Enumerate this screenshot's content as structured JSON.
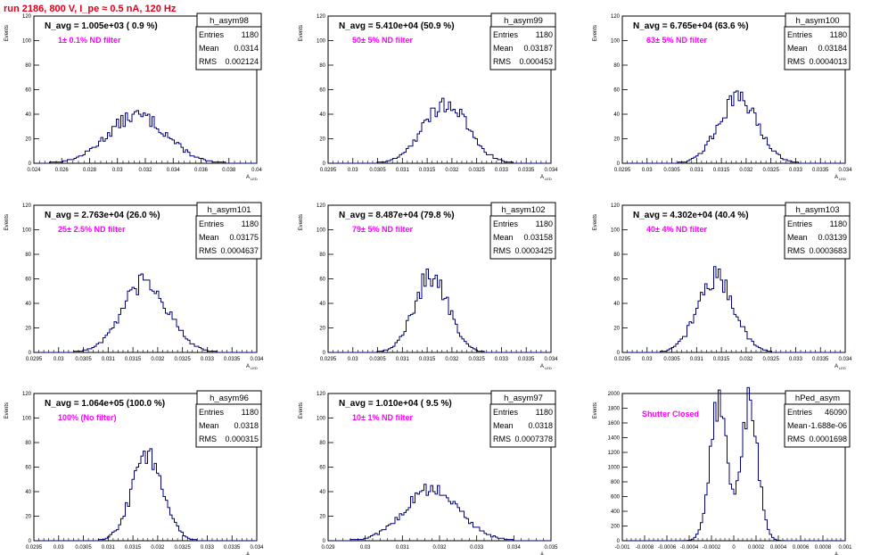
{
  "header": {
    "title": "run 2186,   800 V, I_pe ≈ 0.5 nA, 120 Hz"
  },
  "chart_data": [
    {
      "type": "histogram",
      "name": "h_asym98",
      "title": "N_avg = 1.005e+03 ( 0.9 %)",
      "annotation": "1± 0.1% ND filter",
      "stats": {
        "Entries": "1180",
        "Mean": "0.0314",
        "RMS": "0.002124"
      },
      "ylabel": "Events",
      "xlabel": "A",
      "xlim": [
        0.024,
        0.04
      ],
      "ylim": [
        0,
        120
      ],
      "xticks": [
        "0.024",
        "0.026",
        "0.028",
        "0.03",
        "0.032",
        "0.034",
        "0.036",
        "0.038",
        "0.04"
      ],
      "yticks": [
        "0",
        "20",
        "40",
        "60",
        "80",
        "100",
        "120"
      ],
      "mean": 0.0314,
      "rms": 0.002124,
      "peak": 40
    },
    {
      "type": "histogram",
      "name": "h_asym99",
      "title": "N_avg = 5.410e+04 (50.9 %)",
      "annotation": "50± 5% ND filter",
      "stats": {
        "Entries": "1180",
        "Mean": "0.03187",
        "RMS": "0.000453"
      },
      "ylabel": "Events",
      "xlabel": "A",
      "xlim": [
        0.0295,
        0.034
      ],
      "ylim": [
        0,
        120
      ],
      "xticks": [
        "0.0295",
        "0.03",
        "0.0305",
        "0.031",
        "0.0315",
        "0.032",
        "0.0325",
        "0.033",
        "0.0335",
        "0.034"
      ],
      "yticks": [
        "0",
        "20",
        "40",
        "60",
        "80",
        "100",
        "120"
      ],
      "mean": 0.03187,
      "rms": 0.000453,
      "peak": 50
    },
    {
      "type": "histogram",
      "name": "h_asym100",
      "title": "N_avg = 6.765e+04 (63.6 %)",
      "annotation": "63± 5% ND filter",
      "stats": {
        "Entries": "1180",
        "Mean": "0.03184",
        "RMS": "0.0004013"
      },
      "ylabel": "Events",
      "xlabel": "A",
      "xlim": [
        0.0295,
        0.034
      ],
      "ylim": [
        0,
        120
      ],
      "xticks": [
        "0.0295",
        "0.03",
        "0.0305",
        "0.031",
        "0.0315",
        "0.032",
        "0.0325",
        "0.033",
        "0.0335",
        "0.034"
      ],
      "yticks": [
        "0",
        "20",
        "40",
        "60",
        "80",
        "100",
        "120"
      ],
      "mean": 0.03184,
      "rms": 0.0004013,
      "peak": 54
    },
    {
      "type": "histogram",
      "name": "h_asym101",
      "title": "N_avg = 2.763e+04 (26.0 %)",
      "annotation": "25± 2.5% ND filter",
      "stats": {
        "Entries": "1180",
        "Mean": "0.03175",
        "RMS": "0.0004637"
      },
      "ylabel": "Events",
      "xlabel": "A",
      "xlim": [
        0.0295,
        0.034
      ],
      "ylim": [
        0,
        120
      ],
      "xticks": [
        "0.0295",
        "0.03",
        "0.0305",
        "0.031",
        "0.0315",
        "0.032",
        "0.0325",
        "0.033",
        "0.0335",
        "0.034"
      ],
      "yticks": [
        "0",
        "20",
        "40",
        "60",
        "80",
        "100",
        "120"
      ],
      "mean": 0.03175,
      "rms": 0.0004637,
      "peak": 58
    },
    {
      "type": "histogram",
      "name": "h_asym102",
      "title": "N_avg = 8.487e+04 (79.8 %)",
      "annotation": "79± 5% ND filter",
      "stats": {
        "Entries": "1180",
        "Mean": "0.03158",
        "RMS": "0.0003425"
      },
      "ylabel": "Events",
      "xlabel": "A",
      "xlim": [
        0.0295,
        0.034
      ],
      "ylim": [
        0,
        120
      ],
      "xticks": [
        "0.0295",
        "0.03",
        "0.0305",
        "0.031",
        "0.0315",
        "0.032",
        "0.0325",
        "0.033",
        "0.0335",
        "0.034"
      ],
      "yticks": [
        "0",
        "20",
        "40",
        "60",
        "80",
        "100",
        "120"
      ],
      "mean": 0.03158,
      "rms": 0.0003425,
      "peak": 65
    },
    {
      "type": "histogram",
      "name": "h_asym103",
      "title": "N_avg = 4.302e+04 (40.4 %)",
      "annotation": "40± 4% ND filter",
      "stats": {
        "Entries": "1180",
        "Mean": "0.03139",
        "RMS": "0.0003683"
      },
      "ylabel": "Events",
      "xlabel": "A",
      "xlim": [
        0.0295,
        0.034
      ],
      "ylim": [
        0,
        120
      ],
      "xticks": [
        "0.0295",
        "0.03",
        "0.0305",
        "0.031",
        "0.0315",
        "0.032",
        "0.0325",
        "0.033",
        "0.0335",
        "0.034"
      ],
      "yticks": [
        "0",
        "20",
        "40",
        "60",
        "80",
        "100",
        "120"
      ],
      "mean": 0.03139,
      "rms": 0.0003683,
      "peak": 63
    },
    {
      "type": "histogram",
      "name": "h_asym96",
      "title": "N_avg = 1.064e+05 (100.0 %)",
      "annotation": "100% (No filter)",
      "stats": {
        "Entries": "1180",
        "Mean": "0.0318",
        "RMS": "0.000315"
      },
      "ylabel": "Events",
      "xlabel": "A",
      "xlim": [
        0.0295,
        0.034
      ],
      "ylim": [
        0,
        120
      ],
      "xticks": [
        "0.0295",
        "0.03",
        "0.0305",
        "0.031",
        "0.0315",
        "0.032",
        "0.0325",
        "0.033",
        "0.0335",
        "0.034"
      ],
      "yticks": [
        "0",
        "20",
        "40",
        "60",
        "80",
        "100",
        "120"
      ],
      "mean": 0.0318,
      "rms": 0.000315,
      "peak": 72
    },
    {
      "type": "histogram",
      "name": "h_asym97",
      "title": "N_avg = 1.010e+04 ( 9.5 %)",
      "annotation": "10± 1% ND filter",
      "stats": {
        "Entries": "1180",
        "Mean": "0.0318",
        "RMS": "0.0007378"
      },
      "ylabel": "Events",
      "xlabel": "A",
      "xlim": [
        0.029,
        0.035
      ],
      "ylim": [
        0,
        120
      ],
      "xticks": [
        "0.029",
        "0.03",
        "0.031",
        "0.032",
        "0.033",
        "0.034",
        "0.035"
      ],
      "yticks": [
        "0",
        "20",
        "40",
        "60",
        "80",
        "100",
        "120"
      ],
      "mean": 0.0318,
      "rms": 0.0007378,
      "peak": 43
    },
    {
      "type": "histogram",
      "name": "hPed_asym",
      "title": "",
      "annotation": "Shutter Closed",
      "stats": {
        "Entries": "46090",
        "Mean": "-1.688e-06",
        "RMS": "0.0001698"
      },
      "ylabel": "Events",
      "xlabel": "A",
      "xlim": [
        -0.001,
        0.001
      ],
      "ylim": [
        0,
        2000
      ],
      "xticks": [
        "-0.001",
        "-0.0008",
        "-0.0006",
        "-0.0004",
        "-0.0002",
        "0",
        "0.0002",
        "0.0004",
        "0.0006",
        "0.0008",
        "0.001"
      ],
      "yticks": [
        "0",
        "200",
        "400",
        "600",
        "800",
        "1000",
        "1200",
        "1400",
        "1600",
        "1800",
        "2000"
      ],
      "mean": -1.7e-06,
      "rms": 0.0001698,
      "peak": 1950,
      "bimodal": true
    }
  ]
}
